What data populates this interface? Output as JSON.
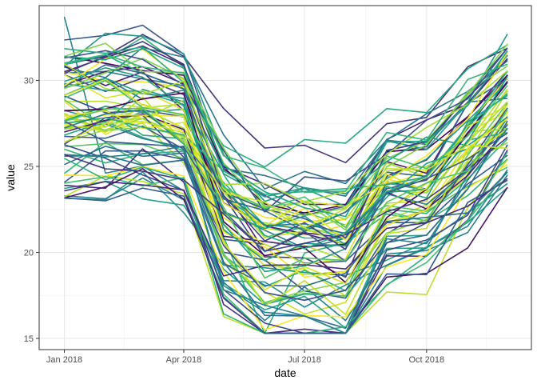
{
  "chart_data": {
    "type": "line",
    "title": "",
    "xlabel": "date",
    "ylabel": "value",
    "x": [
      "2018-01",
      "2018-02",
      "2018-03",
      "2018-04",
      "2018-05",
      "2018-06",
      "2018-07",
      "2018-08",
      "2018-09",
      "2018-10",
      "2018-11",
      "2018-12"
    ],
    "xlim": [
      "2017-12-13",
      "2018-12-19"
    ],
    "ylim": [
      14.35,
      34.35
    ],
    "x_ticks": [
      {
        "date": "2018-01",
        "label": "Jan 2018"
      },
      {
        "date": "2018-04",
        "label": "Apr 2018"
      },
      {
        "date": "2018-07",
        "label": "Jul 2018"
      },
      {
        "date": "2018-10",
        "label": "Oct 2018"
      }
    ],
    "y_ticks": [
      15,
      20,
      25,
      30
    ],
    "grid": true,
    "series_count": 80,
    "color_palette": "viridis",
    "series_generation": {
      "seed": 20180101,
      "baseline_range": [
        23.5,
        32.3
      ],
      "monthly_shape": [
        0,
        0,
        0.2,
        -0.6,
        -6.0,
        -8.0,
        -8.0,
        -8.3,
        -5.0,
        -4.5,
        -2.0,
        0.3
      ],
      "noise": 1.1
    },
    "annotated_extremes": {
      "max_value": 33.7,
      "min_value": 15.3
    }
  }
}
